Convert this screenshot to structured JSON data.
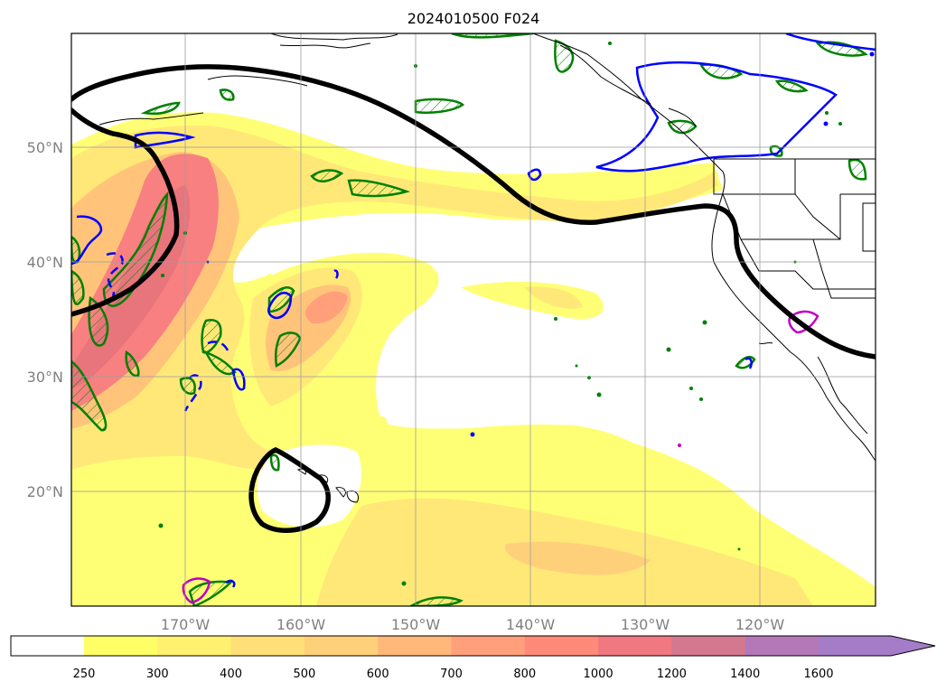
{
  "title": "2024010500 F024",
  "map": {
    "lat_labels": [
      "50°N",
      "40°N",
      "30°N",
      "20°N"
    ],
    "lon_labels": [
      "170°W",
      "160°W",
      "150°W",
      "140°W",
      "130°W",
      "120°W"
    ],
    "grid": true,
    "label_color": "#808080"
  },
  "colorbar": {
    "levels": [
      "250",
      "300",
      "400",
      "500",
      "600",
      "700",
      "800",
      "1000",
      "1200",
      "1400",
      "1600"
    ],
    "colors": [
      "#ffff66",
      "#fff070",
      "#ffe078",
      "#ffd07a",
      "#ffb87a",
      "#ffa07a",
      "#ff8a7a",
      "#f07880",
      "#d47890",
      "#b478b8",
      "#a47cc8"
    ],
    "extend": "max"
  },
  "legend_colors": {
    "black_contour": "#000000",
    "green_contour": "#008000",
    "blue_contour": "#0000ff",
    "magenta_contour": "#c000c0"
  }
}
